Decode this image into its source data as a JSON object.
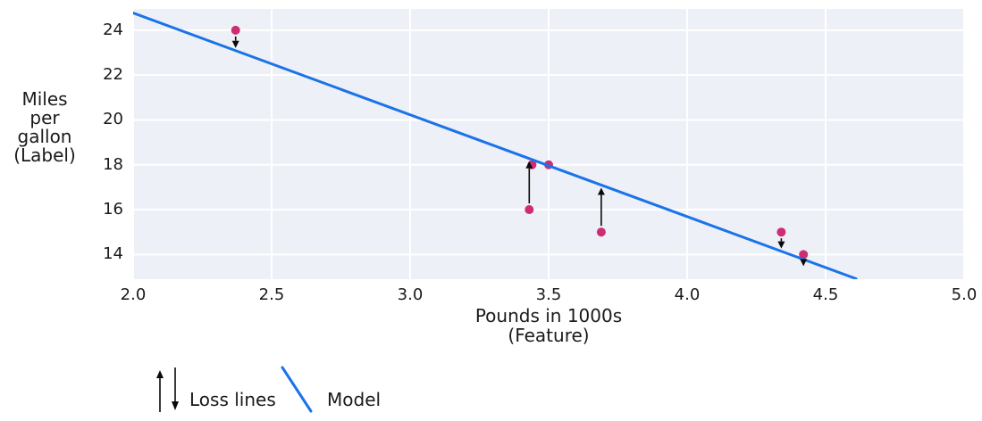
{
  "chart_data": {
    "type": "scatter",
    "title": "",
    "xlabel_lines": [
      "Pounds in 1000s",
      "(Feature)"
    ],
    "ylabel_lines": [
      "Miles",
      "per gallon",
      "(Label)"
    ],
    "x_ticks": {
      "values": [
        2.0,
        2.5,
        3.0,
        3.5,
        4.0,
        4.5,
        5.0
      ],
      "labels": [
        "2.0",
        "2.5",
        "3.0",
        "3.5",
        "4.0",
        "4.5",
        "5.0"
      ]
    },
    "y_ticks": {
      "values": [
        14,
        16,
        18,
        20,
        22,
        24
      ],
      "labels": [
        "14",
        "16",
        "18",
        "20",
        "22",
        "24"
      ]
    },
    "xlim": [
      2.0,
      5.0
    ],
    "ylim": [
      12.9,
      24.95
    ],
    "grid": true,
    "legend_position": "bottom-left",
    "points": [
      {
        "x": 3.5,
        "y": 18,
        "loss_arrow": false
      },
      {
        "x": 3.69,
        "y": 15,
        "loss_arrow": true
      },
      {
        "x": 3.44,
        "y": 18,
        "loss_arrow": false
      },
      {
        "x": 3.43,
        "y": 16,
        "loss_arrow": true
      },
      {
        "x": 4.34,
        "y": 15,
        "loss_arrow": true
      },
      {
        "x": 4.42,
        "y": 14,
        "loss_arrow": true
      },
      {
        "x": 2.37,
        "y": 24,
        "loss_arrow": true
      }
    ],
    "model_line": {
      "x1": 2.0,
      "y1": 24.77,
      "x2": 4.61,
      "y2": 12.92
    },
    "legend": [
      {
        "label": "Loss lines",
        "symbol": "loss-arrows"
      },
      {
        "label": "Model",
        "symbol": "model-line"
      }
    ],
    "colors": {
      "point": "#ce2d73",
      "model": "#1a73e8",
      "plot_bg": "#eef0f7",
      "grid": "#ffffff",
      "arrow": "#0a0a0a",
      "text": "#1a1a1a"
    }
  }
}
